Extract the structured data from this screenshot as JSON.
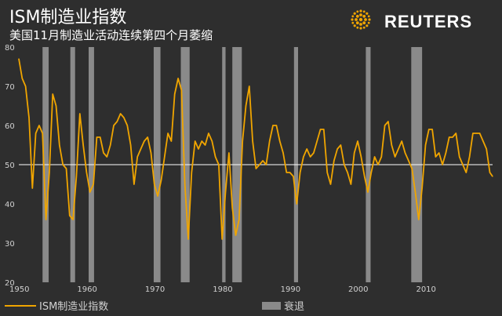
{
  "title": "ISM制造业指数",
  "subtitle": "美国11月制造业活动连续第四个月萎缩",
  "brand": "REUTERS",
  "colors": {
    "background": "#2e2e2e",
    "line": "#f0a500",
    "recession": "#8a8a8a",
    "reference": "#ffffff",
    "text": "#d0d0d0"
  },
  "chart_data": {
    "type": "line",
    "xlim": [
      1950,
      2019.9
    ],
    "ylim": [
      20,
      80
    ],
    "yticks": [
      20,
      30,
      40,
      50,
      60,
      70,
      80
    ],
    "xticks": [
      1950,
      1960,
      1970,
      1980,
      1990,
      2000,
      2010
    ],
    "reference_line": 50,
    "legend": {
      "position": "bottom",
      "items": [
        {
          "label": "ISM制造业指数",
          "kind": "line"
        },
        {
          "label": "衰退",
          "kind": "bar"
        }
      ]
    },
    "recessions": [
      [
        1953.5,
        1954.4
      ],
      [
        1957.6,
        1958.3
      ],
      [
        1960.3,
        1961.1
      ],
      [
        1969.9,
        1970.9
      ],
      [
        1973.9,
        1975.2
      ],
      [
        1980.0,
        1980.5
      ],
      [
        1981.5,
        1982.9
      ],
      [
        1990.6,
        1991.2
      ],
      [
        2001.2,
        2001.9
      ],
      [
        2007.9,
        2009.5
      ]
    ],
    "series": [
      {
        "x": [
          1948.0,
          1948.5,
          1949.0,
          1949.5,
          1950.0,
          1950.5,
          1951.0,
          1951.5,
          1952.0,
          1952.5,
          1953.0,
          1953.5,
          1954.0,
          1954.5,
          1955.0,
          1955.5,
          1956.0,
          1956.5,
          1957.0,
          1957.5,
          1958.0,
          1958.5,
          1959.0,
          1959.5,
          1960.0,
          1960.5,
          1961.0,
          1961.5,
          1962.0,
          1962.5,
          1963.0,
          1963.5,
          1964.0,
          1964.5,
          1965.0,
          1965.5,
          1966.0,
          1966.5,
          1967.0,
          1967.5,
          1968.0,
          1968.5,
          1969.0,
          1969.5,
          1970.0,
          1970.5,
          1971.0,
          1971.5,
          1972.0,
          1972.5,
          1973.0,
          1973.5,
          1974.0,
          1974.5,
          1975.0,
          1975.5,
          1976.0,
          1976.5,
          1977.0,
          1977.5,
          1978.0,
          1978.5,
          1979.0,
          1979.5,
          1980.0,
          1980.5,
          1981.0,
          1981.5,
          1982.0,
          1982.5,
          1983.0,
          1983.5,
          1984.0,
          1984.5,
          1985.0,
          1985.5,
          1986.0,
          1986.5,
          1987.0,
          1987.5,
          1988.0,
          1988.5,
          1989.0,
          1989.5,
          1990.0,
          1990.5,
          1991.0,
          1991.5,
          1992.0,
          1992.5,
          1993.0,
          1993.5,
          1994.0,
          1994.5,
          1995.0,
          1995.5,
          1996.0,
          1996.5,
          1997.0,
          1997.5,
          1998.0,
          1998.5,
          1999.0,
          1999.5,
          2000.0,
          2000.5,
          2001.0,
          2001.5,
          2002.0,
          2002.5,
          2003.0,
          2003.5,
          2004.0,
          2004.5,
          2005.0,
          2005.5,
          2006.0,
          2006.5,
          2007.0,
          2007.5,
          2008.0,
          2008.5,
          2009.0,
          2009.5,
          2010.0,
          2010.5,
          2011.0,
          2011.5,
          2012.0,
          2012.5,
          2013.0,
          2013.5,
          2014.0,
          2014.5,
          2015.0,
          2015.5,
          2016.0,
          2016.5,
          2017.0,
          2017.5,
          2018.0,
          2018.5,
          2019.0,
          2019.5,
          2019.9
        ],
        "y": [
          50,
          60,
          62,
          44,
          77,
          72,
          70,
          62,
          44,
          58,
          60,
          58,
          36,
          48,
          68,
          65,
          55,
          50,
          49,
          37,
          36,
          47,
          63,
          55,
          48,
          43,
          45,
          57,
          57,
          53,
          52,
          55,
          60,
          61,
          63,
          62,
          60,
          55,
          45,
          52,
          54,
          56,
          57,
          53,
          45,
          42,
          46,
          52,
          58,
          56,
          68,
          72,
          69,
          45,
          31,
          48,
          56,
          54,
          56,
          55,
          58,
          56,
          52,
          50,
          31,
          43,
          53,
          39,
          32,
          36,
          56,
          65,
          70,
          56,
          49,
          50,
          51,
          50,
          56,
          60,
          60,
          56,
          53,
          48,
          48,
          47,
          40,
          48,
          52,
          54,
          52,
          53,
          56,
          59,
          59,
          48,
          45,
          51,
          54,
          55,
          50,
          48,
          45,
          53,
          56,
          52,
          47,
          43,
          48,
          52,
          50,
          52,
          60,
          61,
          55,
          52,
          54,
          56,
          53,
          51,
          49,
          43,
          36,
          44,
          55,
          59,
          59,
          52,
          53,
          50,
          53,
          57,
          57,
          58,
          52,
          50,
          48,
          52,
          58,
          58,
          58,
          56,
          54,
          48,
          47
        ]
      }
    ]
  }
}
